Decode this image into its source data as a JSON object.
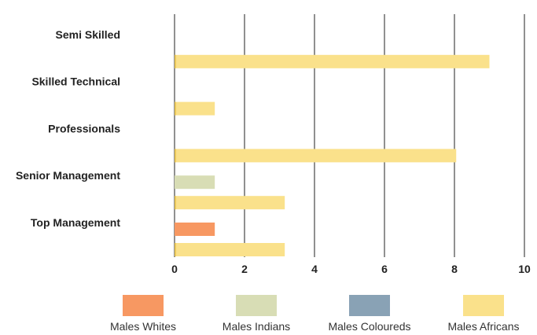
{
  "chart_data": {
    "type": "bar",
    "orientation": "horizontal",
    "title": "",
    "xlabel": "",
    "ylabel": "",
    "categories": [
      "Top Management",
      "Senior Management",
      "Professionals",
      "Skilled Technical",
      "Semi Skilled"
    ],
    "xlim": [
      0,
      10
    ],
    "xticks": [
      0,
      2,
      4,
      6,
      8,
      10
    ],
    "grid": true,
    "legend_position": "bottom",
    "series": [
      {
        "name": "Males Whites",
        "color": "#F79862",
        "values": [
          1.15,
          0,
          0,
          0,
          0
        ]
      },
      {
        "name": "Males Indians",
        "color": "#D8DDB5",
        "values": [
          0,
          1.15,
          0,
          0,
          0
        ]
      },
      {
        "name": "Males Coloureds",
        "color": "#89A2B5",
        "values": [
          0,
          0,
          0,
          0,
          0
        ]
      },
      {
        "name": "Males Africans",
        "color": "#FAE18B",
        "values": [
          3.15,
          3.15,
          8.05,
          1.15,
          9.0
        ]
      }
    ]
  }
}
